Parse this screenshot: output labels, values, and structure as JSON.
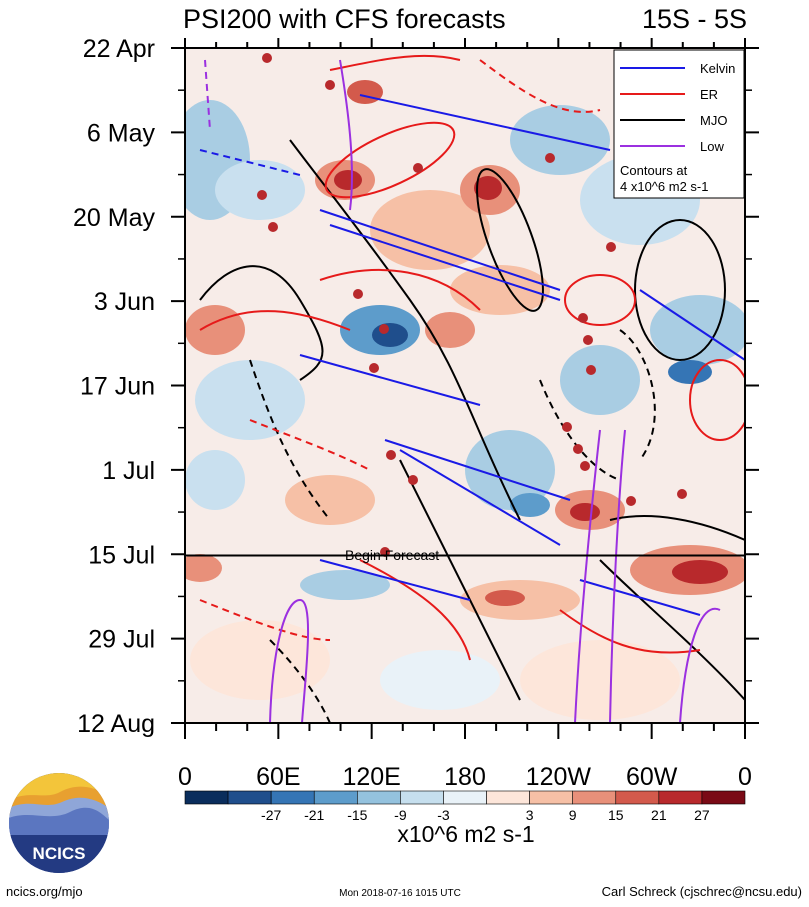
{
  "chart_data": {
    "type": "heatmap",
    "title": "PSI200 with CFS forecasts",
    "region": "15S - 5S",
    "x_axis": {
      "ticks": [
        {
          "label": "0",
          "lon": 0
        },
        {
          "label": "60E",
          "lon": 60
        },
        {
          "label": "120E",
          "lon": 120
        },
        {
          "label": "180",
          "lon": 180
        },
        {
          "label": "120W",
          "lon": 240
        },
        {
          "label": "60W",
          "lon": 300
        },
        {
          "label": "0",
          "lon": 360
        }
      ],
      "range": [
        0,
        360
      ]
    },
    "y_axis": {
      "ticks": [
        "22 Apr",
        "6 May",
        "20 May",
        "3 Jun",
        "17 Jun",
        "1 Jul",
        "15 Jul",
        "29 Jul",
        "12 Aug"
      ],
      "range": [
        "22 Apr",
        "12 Aug"
      ]
    },
    "forecast_start": {
      "date": "15 Jul",
      "label": "Begin Forecast"
    },
    "legend": {
      "position": "top-right",
      "items": [
        {
          "name": "Kelvin",
          "color": "#1a1ae6"
        },
        {
          "name": "ER",
          "color": "#e61a1a"
        },
        {
          "name": "MJO",
          "color": "#000000"
        },
        {
          "name": "Low",
          "color": "#9b30e0"
        }
      ],
      "note_line1": "Contours at",
      "note_line2": "4 x10^6 m2 s-1"
    },
    "colorbar": {
      "tick_labels": [
        "-27",
        "-21",
        "-15",
        "-9",
        "-3",
        "3",
        "9",
        "15",
        "21",
        "27"
      ],
      "colors": [
        "#0a2d5c",
        "#1f4e8c",
        "#3575b5",
        "#5d9ccb",
        "#94c2de",
        "#c6dfee",
        "#e9f2f8",
        "#fde6da",
        "#f6c0a6",
        "#e8907a",
        "#d35a4c",
        "#b8292c",
        "#7a0a16"
      ],
      "units": "x10^6 m2 s-1"
    }
  },
  "footer": {
    "left": "ncics.org/mjo",
    "center": "Mon 2018-07-16 1015 UTC",
    "right": "Carl Schreck (cjschrec@ncsu.edu)"
  },
  "logo": {
    "text": "NCICS"
  }
}
